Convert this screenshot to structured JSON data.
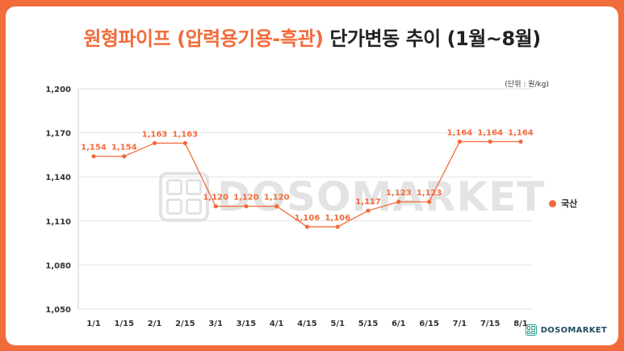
{
  "title": {
    "accent": "원형파이프 (압력용기용-흑관)",
    "rest": "단가변동 추이 (1월~8월)"
  },
  "unit_label": "(단위 : 원/kg)",
  "brand": "DOSOMARKET",
  "watermark": "DOSOMARKET",
  "colors": {
    "accent": "#f26b3a",
    "frame": "#f26b3a",
    "brand": "#1f4e5f",
    "grid": "#e2e2e2"
  },
  "chart_data": {
    "type": "line",
    "categories": [
      "1/1",
      "1/15",
      "2/1",
      "2/15",
      "3/1",
      "3/15",
      "4/1",
      "4/15",
      "5/1",
      "5/15",
      "6/1",
      "6/15",
      "7/1",
      "7/15",
      "8/1"
    ],
    "series": [
      {
        "name": "국산",
        "values": [
          1154,
          1154,
          1163,
          1163,
          1120,
          1120,
          1120,
          1106,
          1106,
          1117,
          1123,
          1123,
          1164,
          1164,
          1164
        ]
      }
    ],
    "data_labels": [
      "1,154",
      "1,154",
      "1,163",
      "1,163",
      "1,120",
      "1,120",
      "1,120",
      "1,106",
      "1,106",
      "1,117",
      "1,123",
      "1,123",
      "1,164",
      "1,164",
      "1,164"
    ],
    "yticks": [
      1050,
      1080,
      1110,
      1140,
      1170,
      1200
    ],
    "ytick_labels": [
      "1,050",
      "1,080",
      "1,110",
      "1,140",
      "1,170",
      "1,200"
    ],
    "ylim": [
      1050,
      1200
    ],
    "grid": true,
    "legend_position": "right",
    "line_style": "step"
  }
}
